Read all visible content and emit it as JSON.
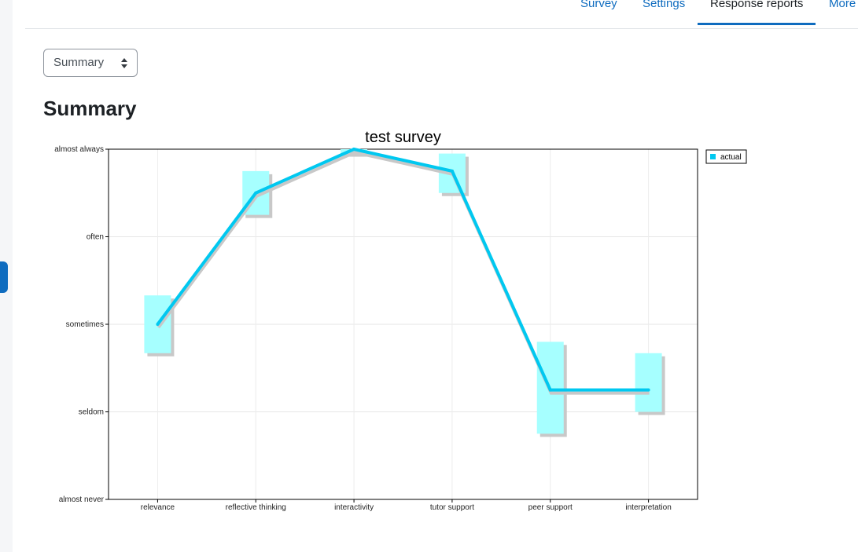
{
  "nav": {
    "tabs": [
      {
        "label": "Survey"
      },
      {
        "label": "Settings"
      },
      {
        "label": "Response reports"
      },
      {
        "label": "More"
      }
    ]
  },
  "report_select": {
    "value": "Summary"
  },
  "page": {
    "title": "Summary"
  },
  "chart_data": {
    "type": "line",
    "title": "test survey",
    "categories": [
      "relevance",
      "reflective thinking",
      "interactivity",
      "tutor support",
      "peer support",
      "interpretation"
    ],
    "y_scale_labels": [
      "almost never",
      "seldom",
      "sometimes",
      "often",
      "almost always"
    ],
    "ylim": [
      1,
      5
    ],
    "series": [
      {
        "name": "actual",
        "values": [
          3.0,
          4.5,
          5.0,
          4.75,
          2.25,
          2.25
        ],
        "color": "#00c8f0"
      }
    ],
    "error_bands": [
      {
        "low": 2.67,
        "high": 3.33
      },
      {
        "low": 4.25,
        "high": 4.75
      },
      {
        "low": 4.95,
        "high": 5.0
      },
      {
        "low": 4.5,
        "high": 4.95
      },
      {
        "low": 1.75,
        "high": 2.8
      },
      {
        "low": 2.0,
        "high": 2.67
      }
    ],
    "band_color": "#a6ffff",
    "legend_position": "top-right",
    "grid": true
  }
}
